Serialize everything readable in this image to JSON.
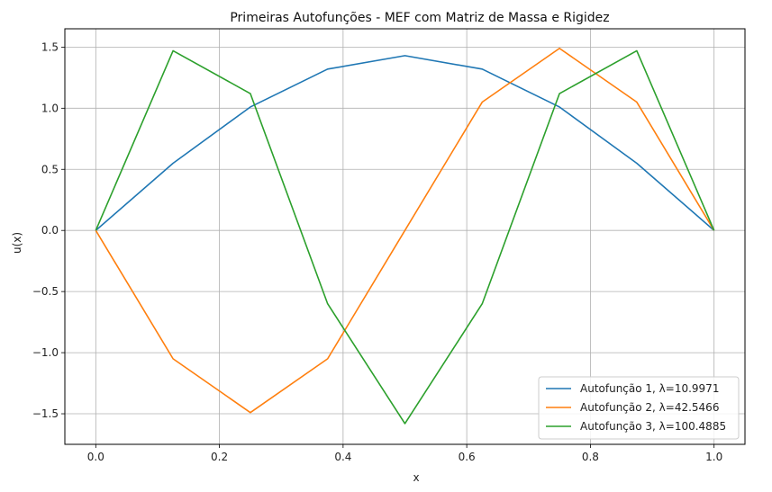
{
  "chart_data": {
    "type": "line",
    "title": "Primeiras Autofunções - MEF com Matriz de Massa e Rigidez",
    "xlabel": "x",
    "ylabel": "u(x)",
    "xlim": [
      -0.05,
      1.05
    ],
    "ylim": [
      -1.75,
      1.65
    ],
    "xticks": [
      0.0,
      0.2,
      0.4,
      0.6,
      0.8,
      1.0
    ],
    "xtick_labels": [
      "0.0",
      "0.2",
      "0.4",
      "0.6",
      "0.8",
      "1.0"
    ],
    "yticks": [
      -1.5,
      -1.0,
      -0.5,
      0.0,
      0.5,
      1.0,
      1.5
    ],
    "ytick_labels": [
      "−1.5",
      "−1.0",
      "−0.5",
      "0.0",
      "0.5",
      "1.0",
      "1.5"
    ],
    "grid": true,
    "legend_position": "lower-right",
    "x": [
      0.0,
      0.125,
      0.25,
      0.375,
      0.5,
      0.625,
      0.75,
      0.875,
      1.0
    ],
    "series": [
      {
        "name": "Autofunção 1, λ=10.9971",
        "color": "#1f77b4",
        "values": [
          0.0,
          0.55,
          1.01,
          1.32,
          1.43,
          1.32,
          1.01,
          0.55,
          0.0
        ]
      },
      {
        "name": "Autofunção 2, λ=42.5466",
        "color": "#ff7f0e",
        "values": [
          0.0,
          -1.05,
          -1.49,
          -1.05,
          0.0,
          1.05,
          1.49,
          1.05,
          0.0
        ]
      },
      {
        "name": "Autofunção 3, λ=100.4885",
        "color": "#2ca02c",
        "values": [
          0.0,
          1.47,
          1.12,
          -0.6,
          -1.58,
          -0.6,
          1.12,
          1.47,
          0.0
        ]
      }
    ]
  }
}
